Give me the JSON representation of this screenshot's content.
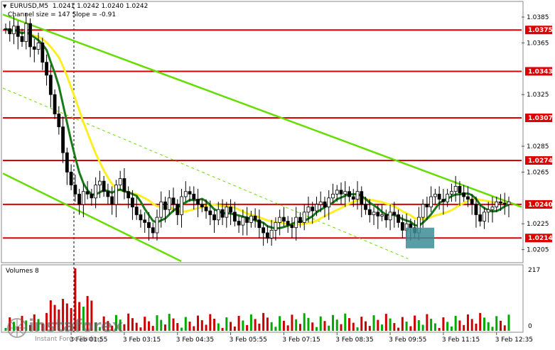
{
  "header": {
    "symbol_line": "EURUSD,M5  1.0241 1.0242 1.0240 1.0242",
    "channel_line": "Channel size = 147 Slope = -0.91"
  },
  "volume_panel": {
    "title": "Volumes 8",
    "axis_max": "217",
    "axis_min": "0"
  },
  "watermark": {
    "brand": "instaforex",
    "tagline": "Instant Forex Trading"
  },
  "colors": {
    "candle": "#000000",
    "volume_up": "#00aa00",
    "volume_down": "#cc0000",
    "level_line": "#dd0000",
    "channel": "#66dd00",
    "ma_fast": "#1a7a1a",
    "ma_slow": "#ffee22",
    "buy_zone": "#3c8c96"
  },
  "chart_data": {
    "type": "candlestick",
    "symbol": "EURUSD",
    "timeframe": "M5",
    "ylim": [
      1.0196,
      1.0396
    ],
    "y_ticks": [
      "1.0385",
      "1.0365",
      "1.0325",
      "1.0285",
      "1.0265",
      "1.0225",
      "1.0205"
    ],
    "levels": [
      {
        "value": 1.0375,
        "label": "1.0375"
      },
      {
        "value": 1.0343,
        "label": "1.0343"
      },
      {
        "value": 1.0307,
        "label": "1.0307"
      },
      {
        "value": 1.0274,
        "label": "1.0274"
      },
      {
        "value": 1.024,
        "label": "1.0240"
      },
      {
        "value": 1.0214,
        "label": "1.0214"
      }
    ],
    "x_labels": [
      "3 Feb 01:55",
      "3 Feb 03:15",
      "3 Feb 04:35",
      "3 Feb 05:55",
      "3 Feb 07:15",
      "3 Feb 08:35",
      "3 Feb 09:55",
      "3 Feb 11:15",
      "3 Feb 12:35"
    ],
    "close_series": [
      1.0376,
      1.0372,
      1.0378,
      1.037,
      1.0366,
      1.038,
      1.0362,
      1.036,
      1.0365,
      1.035,
      1.034,
      1.0325,
      1.031,
      1.03,
      1.028,
      1.0265,
      1.0255,
      1.0248,
      1.024,
      1.025,
      1.0248,
      1.0245,
      1.0255,
      1.0258,
      1.025,
      1.0246,
      1.024,
      1.0255,
      1.026,
      1.025,
      1.0245,
      1.0238,
      1.0232,
      1.0228,
      1.0226,
      1.0222,
      1.0218,
      1.023,
      1.0242,
      1.0236,
      1.0245,
      1.024,
      1.0232,
      1.0246,
      1.025,
      1.0248,
      1.0244,
      1.024,
      1.0238,
      1.0235,
      1.0232,
      1.0228,
      1.0236,
      1.023,
      1.0238,
      1.0234,
      1.0227,
      1.0224,
      1.023,
      1.0226,
      1.0231,
      1.0228,
      1.0222,
      1.0218,
      1.0214,
      1.022,
      1.0226,
      1.023,
      1.0227,
      1.0224,
      1.0222,
      1.023,
      1.0226,
      1.0234,
      1.0238,
      1.0235,
      1.024,
      1.0242,
      1.0238,
      1.0245,
      1.0248,
      1.0251,
      1.0248,
      1.025,
      1.0246,
      1.0244,
      1.025,
      1.024,
      1.0236,
      1.0232,
      1.0234,
      1.0231,
      1.0232,
      1.0228,
      1.0234,
      1.0232,
      1.0226,
      1.022,
      1.0225,
      1.0222,
      1.0218,
      1.023,
      1.024,
      1.0238,
      1.0246,
      1.0248,
      1.0244,
      1.0242,
      1.0248,
      1.025,
      1.0254,
      1.0249,
      1.0246,
      1.0244,
      1.024,
      1.0232,
      1.0227,
      1.0234,
      1.0236,
      1.0238,
      1.0242,
      1.0241,
      1.024,
      1.0242
    ]
  }
}
